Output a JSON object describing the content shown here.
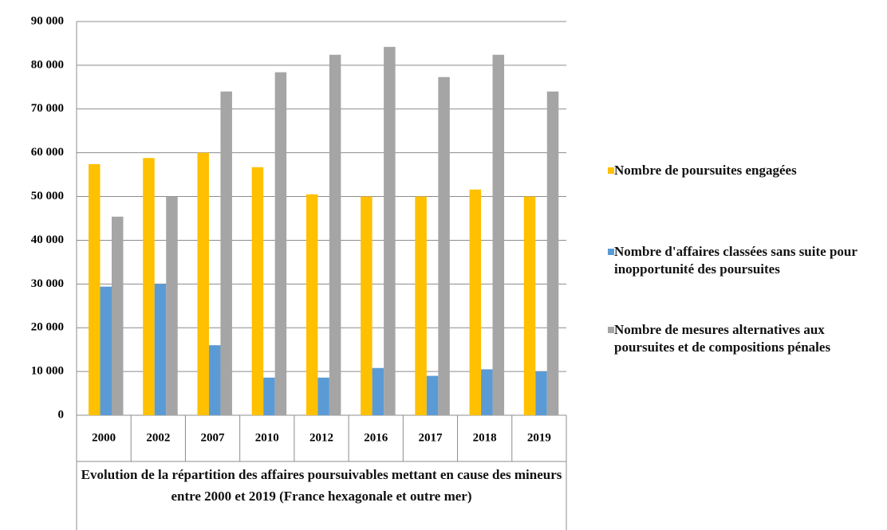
{
  "chart_data": {
    "type": "bar",
    "title": "Evolution de la répartition des affaires poursuivables mettant en cause des mineurs entre 2000 et 2019 (France hexagonale et outre mer)",
    "categories": [
      "2000",
      "2002",
      "2007",
      "2010",
      "2012",
      "2016",
      "2017",
      "2018",
      "2019"
    ],
    "series": [
      {
        "name": "Nombre de poursuites engagées",
        "color": "#ffc000",
        "values": [
          57400,
          58800,
          60000,
          56700,
          50500,
          50000,
          50000,
          51600,
          50000
        ]
      },
      {
        "name": "Nombre d'affaires classées sans suite pour inopportunité des poursuites",
        "color": "#5b9bd5",
        "values": [
          29400,
          30000,
          16000,
          8600,
          8600,
          10800,
          9000,
          10500,
          10000
        ]
      },
      {
        "name": "Nombre de mesures alternatives aux poursuites et de compositions pénales",
        "color": "#a5a5a5",
        "values": [
          45400,
          50000,
          74000,
          78400,
          82400,
          84200,
          77300,
          82400,
          74000
        ]
      }
    ],
    "ylim": [
      0,
      90000
    ],
    "yticks": [
      0,
      {
        "value": 10000,
        "label": "10 000"
      },
      {
        "value": 20000,
        "label": "20 000"
      },
      {
        "value": 30000,
        "label": "30 000"
      },
      {
        "value": 40000,
        "label": "40 000"
      },
      {
        "value": 50000,
        "label": "50 000"
      },
      {
        "value": 60000,
        "label": "60 000"
      },
      {
        "value": 70000,
        "label": "70 000"
      },
      {
        "value": 80000,
        "label": "80 000"
      },
      {
        "value": 90000,
        "label": "90 000"
      }
    ],
    "grid": true,
    "legend": "right"
  }
}
